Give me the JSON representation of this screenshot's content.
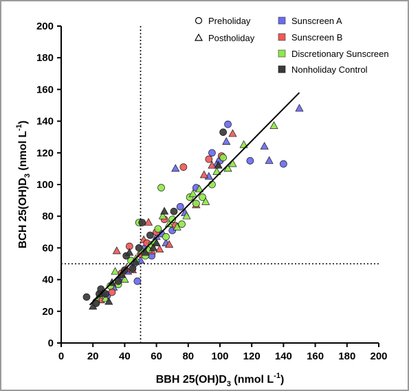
{
  "chart_data": {
    "type": "scatter",
    "xlabel": {
      "main": "BBH 25(OH)D",
      "sub": "3",
      "unit": " (nmol L",
      "sup": "-1",
      "close": ")"
    },
    "ylabel": {
      "main": "BCH 25(OH)D",
      "sub": "3",
      "unit": " (nmol L",
      "sup": "-1",
      "close": ")"
    },
    "xlim": [
      0,
      200
    ],
    "ylim": [
      0,
      200
    ],
    "xticks": [
      "0",
      "20",
      "40",
      "60",
      "80",
      "100",
      "120",
      "140",
      "160",
      "180",
      "200"
    ],
    "yticks": [
      "0",
      "20",
      "40",
      "60",
      "80",
      "100",
      "120",
      "140",
      "160",
      "180",
      "200"
    ],
    "legend_position": "top-right",
    "marker_legend": [
      {
        "label": "Preholiday",
        "marker": "circle"
      },
      {
        "label": "Postholiday",
        "marker": "triangle"
      }
    ],
    "group_legend": [
      {
        "label": "Sunscreen A",
        "color": "#6b6bf2"
      },
      {
        "label": "Sunscreen B",
        "color": "#ee5a5a"
      },
      {
        "label": "Discretionary Sunscreen",
        "color": "#8fe84a"
      },
      {
        "label": "Nonholiday Control",
        "color": "#3a3a3a"
      }
    ],
    "reference_lines": {
      "x": 50,
      "y": 50
    },
    "regression_line": {
      "x": [
        18,
        150
      ],
      "y": [
        24,
        158
      ]
    },
    "series": [
      {
        "name": "Sunscreen A",
        "color": "#6b6bf2",
        "points": [
          [
            29,
            30,
            "c"
          ],
          [
            33,
            35,
            "t"
          ],
          [
            38,
            41,
            "c"
          ],
          [
            42,
            45,
            "t"
          ],
          [
            46,
            50,
            "c"
          ],
          [
            48,
            39,
            "c"
          ],
          [
            50,
            52,
            "t"
          ],
          [
            53,
            60,
            "c"
          ],
          [
            57,
            55,
            "c"
          ],
          [
            60,
            67,
            "t"
          ],
          [
            63,
            69,
            "c"
          ],
          [
            66,
            63,
            "t"
          ],
          [
            70,
            71,
            "c"
          ],
          [
            72,
            110,
            "t"
          ],
          [
            75,
            86,
            "c"
          ],
          [
            78,
            82,
            "t"
          ],
          [
            85,
            98,
            "c"
          ],
          [
            93,
            105,
            "t"
          ],
          [
            95,
            120,
            "c"
          ],
          [
            98,
            113,
            "t"
          ],
          [
            100,
            115,
            "c"
          ],
          [
            104,
            127,
            "t"
          ],
          [
            105,
            138,
            "c"
          ],
          [
            119,
            115,
            "c"
          ],
          [
            128,
            124,
            "t"
          ],
          [
            131,
            115,
            "t"
          ],
          [
            140,
            113,
            "c"
          ],
          [
            150,
            148,
            "t"
          ]
        ]
      },
      {
        "name": "Sunscreen B",
        "color": "#ee5a5a",
        "points": [
          [
            25,
            27,
            "t"
          ],
          [
            32,
            32,
            "c"
          ],
          [
            35,
            58,
            "t"
          ],
          [
            38,
            44,
            "c"
          ],
          [
            41,
            47,
            "t"
          ],
          [
            43,
            61,
            "c"
          ],
          [
            45,
            46,
            "t"
          ],
          [
            50,
            56,
            "c"
          ],
          [
            52,
            65,
            "t"
          ],
          [
            54,
            63,
            "c"
          ],
          [
            55,
            76,
            "t"
          ],
          [
            57,
            58,
            "t"
          ],
          [
            60,
            70,
            "c"
          ],
          [
            62,
            59,
            "t"
          ],
          [
            65,
            78,
            "c"
          ],
          [
            68,
            62,
            "t"
          ],
          [
            72,
            74,
            "c"
          ],
          [
            77,
            111,
            "c"
          ],
          [
            85,
            87,
            "t"
          ],
          [
            90,
            106,
            "t"
          ],
          [
            93,
            116,
            "c"
          ],
          [
            95,
            112,
            "t"
          ],
          [
            101,
            118,
            "c"
          ],
          [
            108,
            132,
            "t"
          ]
        ]
      },
      {
        "name": "Discretionary Sunscreen",
        "color": "#8fe84a",
        "points": [
          [
            22,
            26,
            "c"
          ],
          [
            24,
            30,
            "t"
          ],
          [
            28,
            28,
            "t"
          ],
          [
            31,
            36,
            "c"
          ],
          [
            34,
            45,
            "t"
          ],
          [
            36,
            37,
            "c"
          ],
          [
            40,
            40,
            "t"
          ],
          [
            44,
            52,
            "c"
          ],
          [
            47,
            53,
            "t"
          ],
          [
            49,
            76,
            "c"
          ],
          [
            51,
            58,
            "t"
          ],
          [
            53,
            55,
            "c"
          ],
          [
            55,
            59,
            "t"
          ],
          [
            57,
            62,
            "c"
          ],
          [
            59,
            64,
            "t"
          ],
          [
            61,
            72,
            "c"
          ],
          [
            63,
            98,
            "c"
          ],
          [
            64,
            80,
            "t"
          ],
          [
            66,
            67,
            "c"
          ],
          [
            68,
            75,
            "t"
          ],
          [
            70,
            78,
            "c"
          ],
          [
            73,
            73,
            "t"
          ],
          [
            76,
            75,
            "c"
          ],
          [
            79,
            80,
            "t"
          ],
          [
            81,
            92,
            "c"
          ],
          [
            83,
            94,
            "t"
          ],
          [
            85,
            88,
            "c"
          ],
          [
            87,
            97,
            "t"
          ],
          [
            89,
            92,
            "c"
          ],
          [
            91,
            89,
            "t"
          ],
          [
            95,
            100,
            "c"
          ],
          [
            98,
            108,
            "t"
          ],
          [
            102,
            117,
            "c"
          ],
          [
            105,
            110,
            "t"
          ],
          [
            108,
            113,
            "t"
          ],
          [
            115,
            125,
            "t"
          ],
          [
            134,
            137,
            "t"
          ]
        ]
      },
      {
        "name": "Nonholiday Control",
        "color": "#3a3a3a",
        "points": [
          [
            16,
            29,
            "c"
          ],
          [
            20,
            23,
            "t"
          ],
          [
            22,
            25,
            "c"
          ],
          [
            24,
            31,
            "c"
          ],
          [
            25,
            34,
            "c"
          ],
          [
            26,
            31,
            "t"
          ],
          [
            28,
            31,
            "c"
          ],
          [
            30,
            26,
            "t"
          ],
          [
            32,
            38,
            "t"
          ],
          [
            36,
            39,
            "c"
          ],
          [
            38,
            43,
            "t"
          ],
          [
            40,
            46,
            "c"
          ],
          [
            41,
            55,
            "c"
          ],
          [
            43,
            57,
            "t"
          ],
          [
            45,
            47,
            "c"
          ],
          [
            47,
            51,
            "t"
          ],
          [
            49,
            60,
            "c"
          ],
          [
            51,
            76,
            "c"
          ],
          [
            53,
            57,
            "t"
          ],
          [
            56,
            68,
            "c"
          ],
          [
            58,
            60,
            "t"
          ],
          [
            60,
            63,
            "t"
          ],
          [
            65,
            83,
            "t"
          ],
          [
            71,
            83,
            "c"
          ],
          [
            99,
            112,
            "t"
          ],
          [
            102,
            133,
            "c"
          ]
        ]
      }
    ]
  }
}
